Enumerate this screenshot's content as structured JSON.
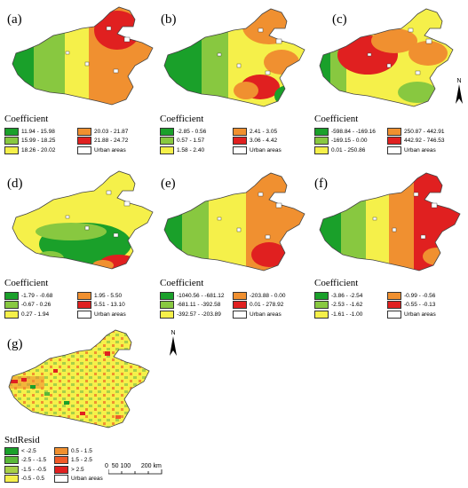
{
  "panels": [
    {
      "id": "a",
      "label": "(a)",
      "legend_title": "Coefficient",
      "legend": [
        {
          "label": "11.94 - 15.98",
          "color": "#1aa02a"
        },
        {
          "label": "20.03 - 21.87",
          "color": "#f09030"
        },
        {
          "label": "15.99 - 18.25",
          "color": "#88c840"
        },
        {
          "label": "21.88 - 24.72",
          "color": "#e02020"
        },
        {
          "label": "18.26 - 20.02",
          "color": "#f5f04a"
        },
        {
          "label": "Urban areas",
          "color": "#ffffff"
        }
      ]
    },
    {
      "id": "b",
      "label": "(b)",
      "legend_title": "Coefficient",
      "legend": [
        {
          "label": "-2.85 - 0.56",
          "color": "#1aa02a"
        },
        {
          "label": "2.41 - 3.05",
          "color": "#f09030"
        },
        {
          "label": "0.57 - 1.57",
          "color": "#88c840"
        },
        {
          "label": "3.06 - 4.42",
          "color": "#e02020"
        },
        {
          "label": "1.58 - 2.40",
          "color": "#f5f04a"
        },
        {
          "label": "Urban areas",
          "color": "#ffffff"
        }
      ]
    },
    {
      "id": "c",
      "label": "(c)",
      "legend_title": "Coefficient",
      "legend": [
        {
          "label": "-598.84 - -169.16",
          "color": "#1aa02a"
        },
        {
          "label": "250.87 - 442.91",
          "color": "#f09030"
        },
        {
          "label": "-169.15 - 0.00",
          "color": "#88c840"
        },
        {
          "label": "442.92 - 746.53",
          "color": "#e02020"
        },
        {
          "label": "0.01 - 250.86",
          "color": "#f5f04a"
        },
        {
          "label": "Urban areas",
          "color": "#ffffff"
        }
      ]
    },
    {
      "id": "d",
      "label": "(d)",
      "legend_title": "Coefficient",
      "legend": [
        {
          "label": "-1.79 - -0.68",
          "color": "#1aa02a"
        },
        {
          "label": "1.95 - 5.50",
          "color": "#f09030"
        },
        {
          "label": "-0.67 - 0.26",
          "color": "#88c840"
        },
        {
          "label": "5.51 - 13.10",
          "color": "#e02020"
        },
        {
          "label": "0.27 - 1.94",
          "color": "#f5f04a"
        },
        {
          "label": "Urban areas",
          "color": "#ffffff"
        }
      ]
    },
    {
      "id": "e",
      "label": "(e)",
      "legend_title": "Coefficient",
      "legend": [
        {
          "label": "-1040.56 - -681.12",
          "color": "#1aa02a"
        },
        {
          "label": "-203.88 - 0.00",
          "color": "#f09030"
        },
        {
          "label": "-681.11 - -392.58",
          "color": "#88c840"
        },
        {
          "label": "0.01 - 278.92",
          "color": "#e02020"
        },
        {
          "label": "-392.57 - -203.89",
          "color": "#f5f04a"
        },
        {
          "label": "Urban areas",
          "color": "#ffffff"
        }
      ]
    },
    {
      "id": "f",
      "label": "(f)",
      "legend_title": "Coefficient",
      "legend": [
        {
          "label": "-3.86 - -2.54",
          "color": "#1aa02a"
        },
        {
          "label": "-0.99 - -0.56",
          "color": "#f09030"
        },
        {
          "label": "-2.53 - -1.62",
          "color": "#88c840"
        },
        {
          "label": "-0.55 - -0.13",
          "color": "#e02020"
        },
        {
          "label": "-1.61 - -1.00",
          "color": "#f5f04a"
        },
        {
          "label": "Urban areas",
          "color": "#ffffff"
        }
      ]
    },
    {
      "id": "g",
      "label": "(g)",
      "legend_title": "StdResid",
      "legend": [
        {
          "label": "< -2.5",
          "color": "#1aa02a"
        },
        {
          "label": "0.5 - 1.5",
          "color": "#f09030"
        },
        {
          "label": "-2.5 - -1.5",
          "color": "#5ab838"
        },
        {
          "label": "1.5 - 2.5",
          "color": "#f05a28"
        },
        {
          "label": "-1.5 - -0.5",
          "color": "#a8d048"
        },
        {
          "label": "> 2.5",
          "color": "#e02020"
        },
        {
          "label": "-0.5 - 0.5",
          "color": "#f5f04a"
        },
        {
          "label": "Urban areas",
          "color": "#ffffff"
        }
      ]
    }
  ],
  "north_arrow": {
    "label": "N"
  },
  "scale_bar": {
    "ticks": "0  50 100      200 km"
  }
}
